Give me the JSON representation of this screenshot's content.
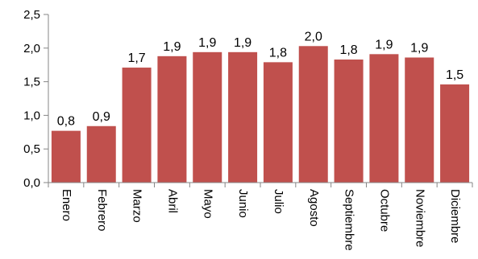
{
  "chart_data": {
    "type": "bar",
    "categories": [
      "Enero",
      "Febrero",
      "Marzo",
      "Abril",
      "Mayo",
      "Junio",
      "Julio",
      "Agosto",
      "Septiembre",
      "Octubre",
      "Noviembre",
      "Diciembre"
    ],
    "values": [
      0.8,
      0.9,
      1.7,
      1.9,
      1.9,
      1.9,
      1.8,
      2.0,
      1.8,
      1.9,
      1.9,
      1.5
    ],
    "bar_heights": [
      0.77,
      0.84,
      1.71,
      1.88,
      1.94,
      1.94,
      1.79,
      2.03,
      1.83,
      1.91,
      1.86,
      1.46
    ],
    "data_labels": [
      "0,8",
      "0,9",
      "1,7",
      "1,9",
      "1,9",
      "1,9",
      "1,8",
      "2,0",
      "1,8",
      "1,9",
      "1,9",
      "1,5"
    ],
    "y_ticks": [
      0,
      0.5,
      1.0,
      1.5,
      2.0,
      2.5
    ],
    "y_tick_labels": [
      "0,0",
      "0,5",
      "1,0",
      "1,5",
      "2,0",
      "2,5"
    ],
    "ylim": [
      0,
      2.5
    ],
    "bar_color": "#c0504d",
    "axis_color": "#868686",
    "grid": false,
    "title": "",
    "xlabel": "",
    "ylabel": ""
  }
}
